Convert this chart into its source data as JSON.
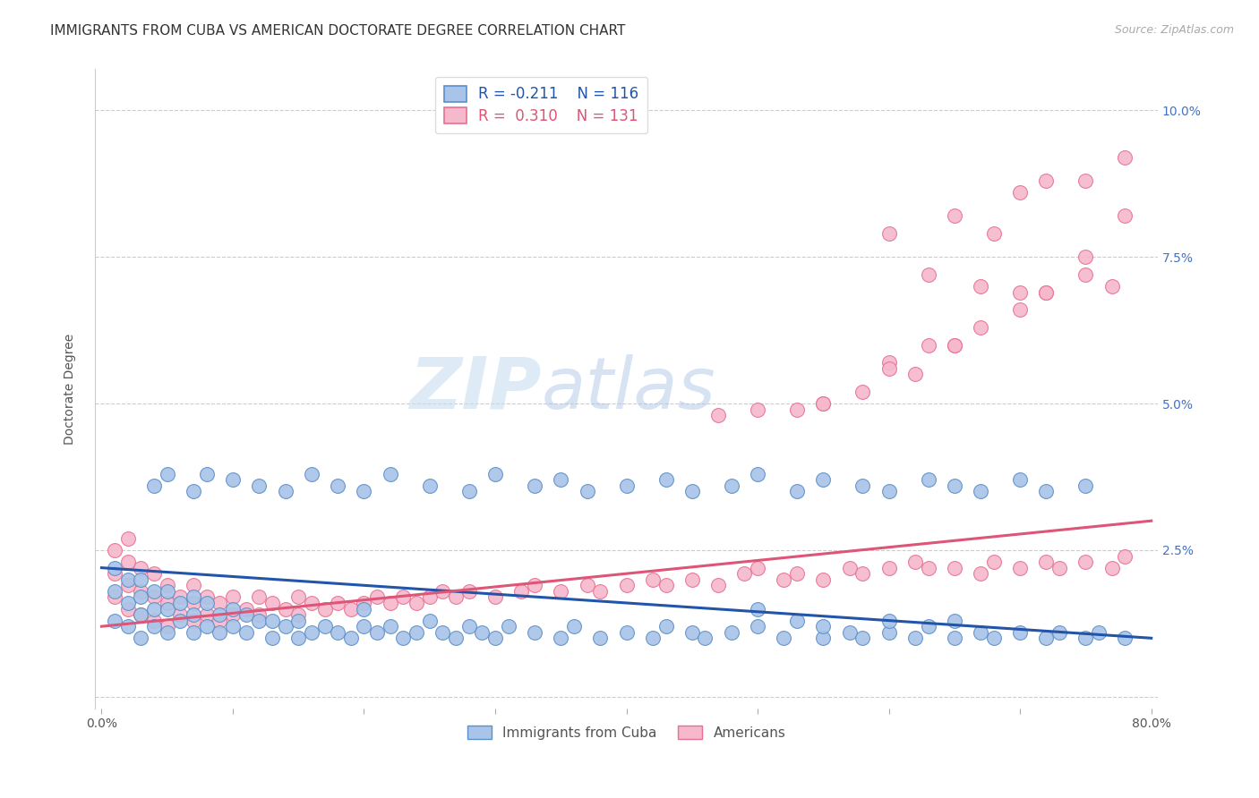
{
  "title": "IMMIGRANTS FROM CUBA VS AMERICAN DOCTORATE DEGREE CORRELATION CHART",
  "source": "Source: ZipAtlas.com",
  "ylabel": "Doctorate Degree",
  "y_ticks": [
    0.0,
    0.025,
    0.05,
    0.075,
    0.1
  ],
  "y_tick_labels": [
    "",
    "2.5%",
    "5.0%",
    "7.5%",
    "10.0%"
  ],
  "x_lim": [
    -0.005,
    0.805
  ],
  "y_lim": [
    -0.002,
    0.107
  ],
  "legend_label_blue": "Immigrants from Cuba",
  "legend_label_pink": "Americans",
  "blue_fill_color": "#a8c4e8",
  "blue_edge_color": "#5b8fc9",
  "pink_fill_color": "#f5b8cc",
  "pink_edge_color": "#e87090",
  "blue_line_color": "#2255aa",
  "pink_line_color": "#dd5577",
  "watermark_color": "#ddeeff",
  "title_fontsize": 11,
  "axis_label_fontsize": 10,
  "tick_fontsize": 10,
  "right_tick_color": "#4472c4",
  "blue_line_x0": 0.0,
  "blue_line_y0": 0.022,
  "blue_line_x1": 0.8,
  "blue_line_y1": 0.01,
  "pink_line_x0": 0.0,
  "pink_line_y0": 0.012,
  "pink_line_x1": 0.8,
  "pink_line_y1": 0.03,
  "blue_x": [
    0.01,
    0.01,
    0.01,
    0.02,
    0.02,
    0.02,
    0.03,
    0.03,
    0.03,
    0.03,
    0.04,
    0.04,
    0.04,
    0.05,
    0.05,
    0.05,
    0.06,
    0.06,
    0.07,
    0.07,
    0.07,
    0.08,
    0.08,
    0.09,
    0.09,
    0.1,
    0.1,
    0.11,
    0.11,
    0.12,
    0.13,
    0.13,
    0.14,
    0.15,
    0.15,
    0.16,
    0.17,
    0.18,
    0.19,
    0.2,
    0.2,
    0.21,
    0.22,
    0.23,
    0.24,
    0.25,
    0.26,
    0.27,
    0.28,
    0.29,
    0.3,
    0.31,
    0.33,
    0.35,
    0.36,
    0.38,
    0.4,
    0.42,
    0.43,
    0.45,
    0.46,
    0.48,
    0.5,
    0.5,
    0.52,
    0.53,
    0.55,
    0.55,
    0.57,
    0.58,
    0.6,
    0.6,
    0.62,
    0.63,
    0.65,
    0.65,
    0.67,
    0.68,
    0.7,
    0.72,
    0.73,
    0.75,
    0.76,
    0.78,
    0.04,
    0.05,
    0.07,
    0.08,
    0.1,
    0.12,
    0.14,
    0.16,
    0.18,
    0.2,
    0.22,
    0.25,
    0.28,
    0.3,
    0.33,
    0.35,
    0.37,
    0.4,
    0.43,
    0.45,
    0.48,
    0.5,
    0.53,
    0.55,
    0.58,
    0.6,
    0.63,
    0.65,
    0.67,
    0.7,
    0.72,
    0.75
  ],
  "blue_y": [
    0.013,
    0.018,
    0.022,
    0.012,
    0.016,
    0.02,
    0.01,
    0.014,
    0.017,
    0.02,
    0.012,
    0.015,
    0.018,
    0.011,
    0.015,
    0.018,
    0.013,
    0.016,
    0.011,
    0.014,
    0.017,
    0.012,
    0.016,
    0.011,
    0.014,
    0.012,
    0.015,
    0.011,
    0.014,
    0.013,
    0.01,
    0.013,
    0.012,
    0.01,
    0.013,
    0.011,
    0.012,
    0.011,
    0.01,
    0.012,
    0.015,
    0.011,
    0.012,
    0.01,
    0.011,
    0.013,
    0.011,
    0.01,
    0.012,
    0.011,
    0.01,
    0.012,
    0.011,
    0.01,
    0.012,
    0.01,
    0.011,
    0.01,
    0.012,
    0.011,
    0.01,
    0.011,
    0.012,
    0.015,
    0.01,
    0.013,
    0.01,
    0.012,
    0.011,
    0.01,
    0.011,
    0.013,
    0.01,
    0.012,
    0.01,
    0.013,
    0.011,
    0.01,
    0.011,
    0.01,
    0.011,
    0.01,
    0.011,
    0.01,
    0.036,
    0.038,
    0.035,
    0.038,
    0.037,
    0.036,
    0.035,
    0.038,
    0.036,
    0.035,
    0.038,
    0.036,
    0.035,
    0.038,
    0.036,
    0.037,
    0.035,
    0.036,
    0.037,
    0.035,
    0.036,
    0.038,
    0.035,
    0.037,
    0.036,
    0.035,
    0.037,
    0.036,
    0.035,
    0.037,
    0.035,
    0.036
  ],
  "pink_x": [
    0.01,
    0.01,
    0.01,
    0.02,
    0.02,
    0.02,
    0.02,
    0.03,
    0.03,
    0.03,
    0.04,
    0.04,
    0.04,
    0.05,
    0.05,
    0.05,
    0.06,
    0.06,
    0.07,
    0.07,
    0.07,
    0.08,
    0.08,
    0.09,
    0.09,
    0.1,
    0.1,
    0.11,
    0.12,
    0.12,
    0.13,
    0.14,
    0.15,
    0.15,
    0.16,
    0.17,
    0.18,
    0.19,
    0.2,
    0.21,
    0.22,
    0.23,
    0.24,
    0.25,
    0.26,
    0.27,
    0.28,
    0.3,
    0.32,
    0.33,
    0.35,
    0.37,
    0.38,
    0.4,
    0.42,
    0.43,
    0.45,
    0.47,
    0.49,
    0.5,
    0.52,
    0.53,
    0.55,
    0.57,
    0.58,
    0.6,
    0.62,
    0.63,
    0.65,
    0.67,
    0.68,
    0.7,
    0.72,
    0.73,
    0.75,
    0.77,
    0.78,
    0.47,
    0.55,
    0.6,
    0.62,
    0.65,
    0.67,
    0.7,
    0.72,
    0.75,
    0.77,
    0.53,
    0.63,
    0.7,
    0.75,
    0.78,
    0.6,
    0.65,
    0.68,
    0.7,
    0.72,
    0.75,
    0.78,
    0.63,
    0.67,
    0.72,
    0.5,
    0.55,
    0.58,
    0.6,
    0.65
  ],
  "pink_y": [
    0.017,
    0.021,
    0.025,
    0.015,
    0.019,
    0.023,
    0.027,
    0.014,
    0.018,
    0.022,
    0.013,
    0.017,
    0.021,
    0.012,
    0.016,
    0.019,
    0.014,
    0.017,
    0.013,
    0.016,
    0.019,
    0.014,
    0.017,
    0.013,
    0.016,
    0.014,
    0.017,
    0.015,
    0.014,
    0.017,
    0.016,
    0.015,
    0.014,
    0.017,
    0.016,
    0.015,
    0.016,
    0.015,
    0.016,
    0.017,
    0.016,
    0.017,
    0.016,
    0.017,
    0.018,
    0.017,
    0.018,
    0.017,
    0.018,
    0.019,
    0.018,
    0.019,
    0.018,
    0.019,
    0.02,
    0.019,
    0.02,
    0.019,
    0.021,
    0.022,
    0.02,
    0.021,
    0.02,
    0.022,
    0.021,
    0.022,
    0.023,
    0.022,
    0.022,
    0.021,
    0.023,
    0.022,
    0.023,
    0.022,
    0.023,
    0.022,
    0.024,
    0.048,
    0.05,
    0.057,
    0.055,
    0.06,
    0.063,
    0.066,
    0.069,
    0.072,
    0.07,
    0.049,
    0.06,
    0.069,
    0.075,
    0.082,
    0.079,
    0.082,
    0.079,
    0.086,
    0.088,
    0.088,
    0.092,
    0.072,
    0.07,
    0.069,
    0.049,
    0.05,
    0.052,
    0.056,
    0.06
  ]
}
